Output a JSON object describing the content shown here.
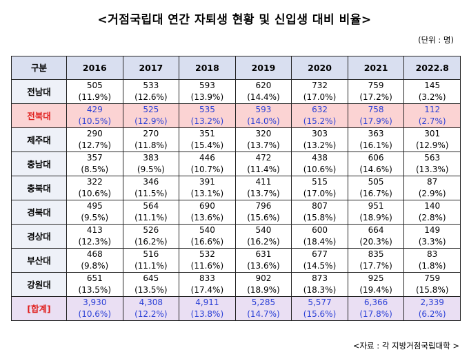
{
  "title": "<거점국립대 연간 자퇴생 현황 및 신입생 대비 비율>",
  "unit": "(단위 : 명)",
  "source": "<자료 : 각 지방거점국립대학 >",
  "table": {
    "header_label": "구분",
    "years": [
      "2016",
      "2017",
      "2018",
      "2019",
      "2020",
      "2021",
      "2022.8"
    ],
    "rows": [
      {
        "name": "전남대",
        "values": [
          "505",
          "533",
          "593",
          "620",
          "732",
          "759",
          "145"
        ],
        "pcts": [
          "(11.9%)",
          "(12.6%)",
          "(13.9%)",
          "(14.4%)",
          "(17.0%)",
          "(17.2%)",
          "(3.2%)"
        ]
      },
      {
        "name": "전북대",
        "values": [
          "429",
          "525",
          "535",
          "593",
          "632",
          "758",
          "112"
        ],
        "pcts": [
          "(10.5%)",
          "(12.9%)",
          "(13.2%)",
          "(14.0%)",
          "(15.2%)",
          "(17.9%)",
          "(2.7%)"
        ]
      },
      {
        "name": "제주대",
        "values": [
          "290",
          "270",
          "351",
          "320",
          "303",
          "363",
          "301"
        ],
        "pcts": [
          "(12.7%)",
          "(11.8%)",
          "(15.4%)",
          "(13.7%)",
          "(13.2%)",
          "(16.1%)",
          "(12.9%)"
        ]
      },
      {
        "name": "충남대",
        "values": [
          "357",
          "383",
          "446",
          "472",
          "438",
          "606",
          "563"
        ],
        "pcts": [
          "(8.5%)",
          "(9.5%)",
          "(10.7%)",
          "(11.4%)",
          "(10.6%)",
          "(14.6%)",
          "(13.3%)"
        ]
      },
      {
        "name": "충북대",
        "values": [
          "322",
          "346",
          "391",
          "411",
          "515",
          "505",
          "87"
        ],
        "pcts": [
          "(10.6%)",
          "(11.5%)",
          "(13.1%)",
          "(13.7%)",
          "(17.0%)",
          "(16.7%)",
          "(2.9%)"
        ]
      },
      {
        "name": "경북대",
        "values": [
          "495",
          "564",
          "690",
          "796",
          "807",
          "951",
          "140"
        ],
        "pcts": [
          "(9.5%)",
          "(11.1%)",
          "(13.6%)",
          "(15.6%)",
          "(15.8%)",
          "(18.9%)",
          "(2.8%)"
        ]
      },
      {
        "name": "경상대",
        "values": [
          "413",
          "526",
          "540",
          "540",
          "600",
          "664",
          "149"
        ],
        "pcts": [
          "(12.3%)",
          "(16.2%)",
          "(16.6%)",
          "(16.2%)",
          "(18.4%)",
          "(20.3%)",
          "(3.3%)"
        ]
      },
      {
        "name": "부산대",
        "values": [
          "468",
          "516",
          "532",
          "631",
          "677",
          "835",
          "83"
        ],
        "pcts": [
          "(9.8%)",
          "(11.1%)",
          "(11.6%)",
          "(13.6%)",
          "(14.5%)",
          "(17.7%)",
          "(1.8%)"
        ]
      },
      {
        "name": "강원대",
        "values": [
          "651",
          "645",
          "833",
          "902",
          "873",
          "925",
          "759"
        ],
        "pcts": [
          "(13.5%)",
          "(13.5%)",
          "(17.4%)",
          "(18.9%)",
          "(18.3%)",
          "(19.4%)",
          "(15.8%)"
        ]
      },
      {
        "name": "[합계]",
        "values": [
          "3,930",
          "4,308",
          "4,911",
          "5,285",
          "5,577",
          "6,366",
          "2,339"
        ],
        "pcts": [
          "(10.6%)",
          "(12.2%)",
          "(13.8%)",
          "(14.7%)",
          "(15.6%)",
          "(17.8%)",
          "(6.2%)"
        ]
      }
    ],
    "highlight_rows": {
      "1": "red",
      "9": "purple"
    }
  }
}
